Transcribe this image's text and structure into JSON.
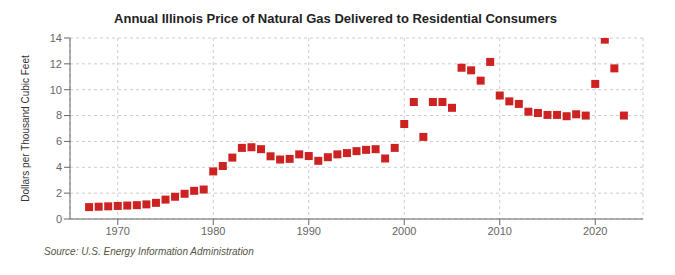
{
  "chart_data": {
    "type": "scatter",
    "title": "Annual Illinois Price of Natural Gas Delivered to Residential Consumers",
    "y_label": "Dollars per Thousand Cubic Feet",
    "annotations": [
      "Source: U.S. Energy Information Administration"
    ],
    "x": [
      1967,
      1968,
      1969,
      1970,
      1971,
      1972,
      1973,
      1974,
      1975,
      1976,
      1977,
      1978,
      1979,
      1980,
      1981,
      1982,
      1983,
      1984,
      1985,
      1986,
      1987,
      1988,
      1989,
      1990,
      1991,
      1992,
      1993,
      1994,
      1995,
      1996,
      1997,
      1998,
      1999,
      2000,
      2001,
      2002,
      2003,
      2004,
      2005,
      2006,
      2007,
      2008,
      2009,
      2010,
      2011,
      2012,
      2013,
      2014,
      2015,
      2016,
      2017,
      2018,
      2019,
      2020,
      2021,
      2022,
      2023
    ],
    "values": [
      0.92,
      0.95,
      0.98,
      1.01,
      1.04,
      1.07,
      1.13,
      1.25,
      1.5,
      1.72,
      1.95,
      2.18,
      2.28,
      3.68,
      4.1,
      4.75,
      5.5,
      5.55,
      5.4,
      4.85,
      4.6,
      4.65,
      5.0,
      4.87,
      4.5,
      4.78,
      5.0,
      5.1,
      5.25,
      5.35,
      5.4,
      4.68,
      5.5,
      7.35,
      9.05,
      6.35,
      9.05,
      9.05,
      8.6,
      11.7,
      11.5,
      10.7,
      12.15,
      9.55,
      9.1,
      8.9,
      8.3,
      8.2,
      8.05,
      8.05,
      7.95,
      8.1,
      8.0,
      10.45,
      13.87,
      11.65,
      8.0
    ],
    "color": "#cc2222",
    "marker": "square",
    "xlim": [
      1965,
      2025
    ],
    "ylim": [
      0,
      14
    ],
    "xticks": [
      1970,
      1980,
      1990,
      2000,
      2010,
      2020
    ],
    "yticks": [
      0,
      2,
      4,
      6,
      8,
      10,
      12,
      14
    ],
    "grid": true
  }
}
